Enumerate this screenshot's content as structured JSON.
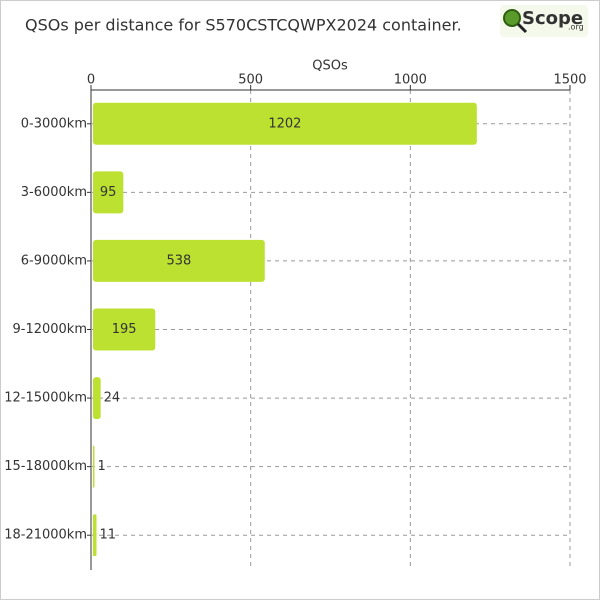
{
  "chart_data": {
    "type": "barh",
    "title": "QSOs per distance for S570CSTCQWPX2024 container.",
    "x_label": "QSOs",
    "categories": [
      "0-3000km",
      "3-6000km",
      "6-9000km",
      "9-12000km",
      "12-15000km",
      "15-18000km",
      "18-21000km"
    ],
    "values": [
      1202,
      95,
      538,
      195,
      24,
      1,
      11
    ],
    "color": "#bce130",
    "xlim": [
      0,
      1500
    ],
    "xticks": [
      0,
      500,
      1000,
      1500
    ],
    "grid": true
  },
  "logo": {
    "text": "Scope",
    "suffix": ".org"
  }
}
